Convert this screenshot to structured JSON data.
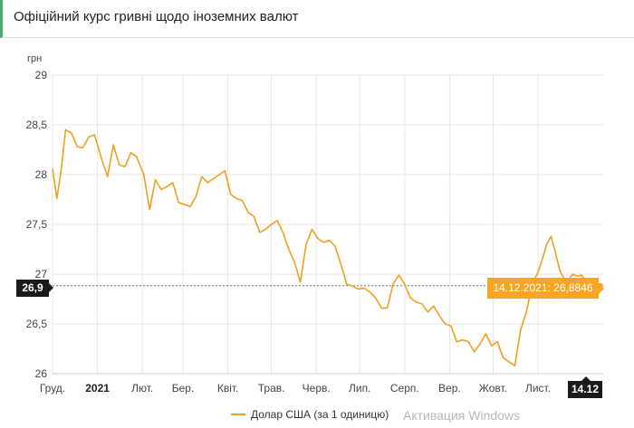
{
  "header": {
    "title": "Офіційний курс гривні щодо іноземних валют"
  },
  "chart_data": {
    "type": "line",
    "title": "",
    "ylabel": "грн",
    "ylim": [
      26,
      29
    ],
    "yticks": [
      26,
      26.5,
      27,
      27.5,
      28,
      28.5,
      29
    ],
    "ytick_labels": [
      "26",
      "26,5",
      "27",
      "27,5",
      "28",
      "28,5",
      "29"
    ],
    "xlim": [
      "2020-12-01",
      "2021-12-16"
    ],
    "xticks": [
      "2020-12-01",
      "2021-01-01",
      "2021-02-01",
      "2021-03-01",
      "2021-04-01",
      "2021-05-01",
      "2021-06-01",
      "2021-07-01",
      "2021-08-01",
      "2021-09-01",
      "2021-10-01",
      "2021-11-01"
    ],
    "xtick_labels": [
      "Груд.",
      "2021",
      "Лют.",
      "Бер.",
      "Квіт.",
      "Трав.",
      "Черв.",
      "Лип.",
      "Серп.",
      "Вер.",
      "Жовт.",
      "Лист."
    ],
    "grid": true,
    "legend_position": "bottom",
    "series": [
      {
        "name": "Долар США (за 1 одиницю)",
        "color": "#f0a020",
        "x": [
          "2020-12-01",
          "2020-12-04",
          "2020-12-07",
          "2020-12-10",
          "2020-12-14",
          "2020-12-18",
          "2020-12-22",
          "2020-12-26",
          "2020-12-30",
          "2021-01-04",
          "2021-01-08",
          "2021-01-12",
          "2021-01-16",
          "2021-01-20",
          "2021-01-24",
          "2021-01-28",
          "2021-02-02",
          "2021-02-06",
          "2021-02-10",
          "2021-02-14",
          "2021-02-18",
          "2021-02-22",
          "2021-02-26",
          "2021-03-02",
          "2021-03-06",
          "2021-03-10",
          "2021-03-14",
          "2021-03-18",
          "2021-03-22",
          "2021-03-26",
          "2021-03-30",
          "2021-04-03",
          "2021-04-07",
          "2021-04-11",
          "2021-04-15",
          "2021-04-19",
          "2021-04-23",
          "2021-04-27",
          "2021-05-01",
          "2021-05-05",
          "2021-05-09",
          "2021-05-13",
          "2021-05-17",
          "2021-05-21",
          "2021-05-25",
          "2021-05-29",
          "2021-06-02",
          "2021-06-06",
          "2021-06-10",
          "2021-06-14",
          "2021-06-18",
          "2021-06-22",
          "2021-06-26",
          "2021-06-30",
          "2021-07-04",
          "2021-07-08",
          "2021-07-12",
          "2021-07-16",
          "2021-07-20",
          "2021-07-24",
          "2021-07-28",
          "2021-08-01",
          "2021-08-05",
          "2021-08-09",
          "2021-08-13",
          "2021-08-17",
          "2021-08-21",
          "2021-08-25",
          "2021-08-29",
          "2021-09-02",
          "2021-09-06",
          "2021-09-10",
          "2021-09-14",
          "2021-09-18",
          "2021-09-22",
          "2021-09-26",
          "2021-09-30",
          "2021-10-04",
          "2021-10-08",
          "2021-10-12",
          "2021-10-16",
          "2021-10-20",
          "2021-10-24",
          "2021-10-28",
          "2021-11-01",
          "2021-11-04",
          "2021-11-07",
          "2021-11-10",
          "2021-11-13",
          "2021-11-16",
          "2021-11-19",
          "2021-11-22",
          "2021-11-25",
          "2021-11-28",
          "2021-12-01",
          "2021-12-03",
          "2021-12-06",
          "2021-12-09",
          "2021-12-12",
          "2021-12-14"
        ],
        "y": [
          28.06,
          27.76,
          28.05,
          28.45,
          28.42,
          28.28,
          28.27,
          28.38,
          28.4,
          28.15,
          27.98,
          28.3,
          28.1,
          28.08,
          28.22,
          28.18,
          28.0,
          27.65,
          27.95,
          27.85,
          27.88,
          27.92,
          27.72,
          27.7,
          27.68,
          27.78,
          27.98,
          27.92,
          27.96,
          28.0,
          28.04,
          27.8,
          27.76,
          27.74,
          27.62,
          27.58,
          27.42,
          27.45,
          27.5,
          27.54,
          27.42,
          27.25,
          27.12,
          26.92,
          27.3,
          27.45,
          27.36,
          27.32,
          27.34,
          27.28,
          27.1,
          26.9,
          26.88,
          26.85,
          26.86,
          26.82,
          26.76,
          26.66,
          26.66,
          26.9,
          26.99,
          26.9,
          26.76,
          26.72,
          26.7,
          26.62,
          26.68,
          26.58,
          26.5,
          26.48,
          26.32,
          26.34,
          26.32,
          26.22,
          26.3,
          26.4,
          26.28,
          26.32,
          26.16,
          26.12,
          26.08,
          26.44,
          26.62,
          26.9,
          27.02,
          27.15,
          27.3,
          27.38,
          27.22,
          27.04,
          26.95,
          26.94,
          27.0,
          26.98,
          26.99,
          26.95,
          26.92,
          26.9,
          26.89,
          26.8846
        ]
      }
    ],
    "annotations": {
      "tooltip": "14.12.2021: 26,8846",
      "y_marker": "26,9",
      "x_marker": "14.12"
    }
  },
  "legend": {
    "label": "Долар США (за 1 одиницю)"
  },
  "watermark": "Активация Windows"
}
